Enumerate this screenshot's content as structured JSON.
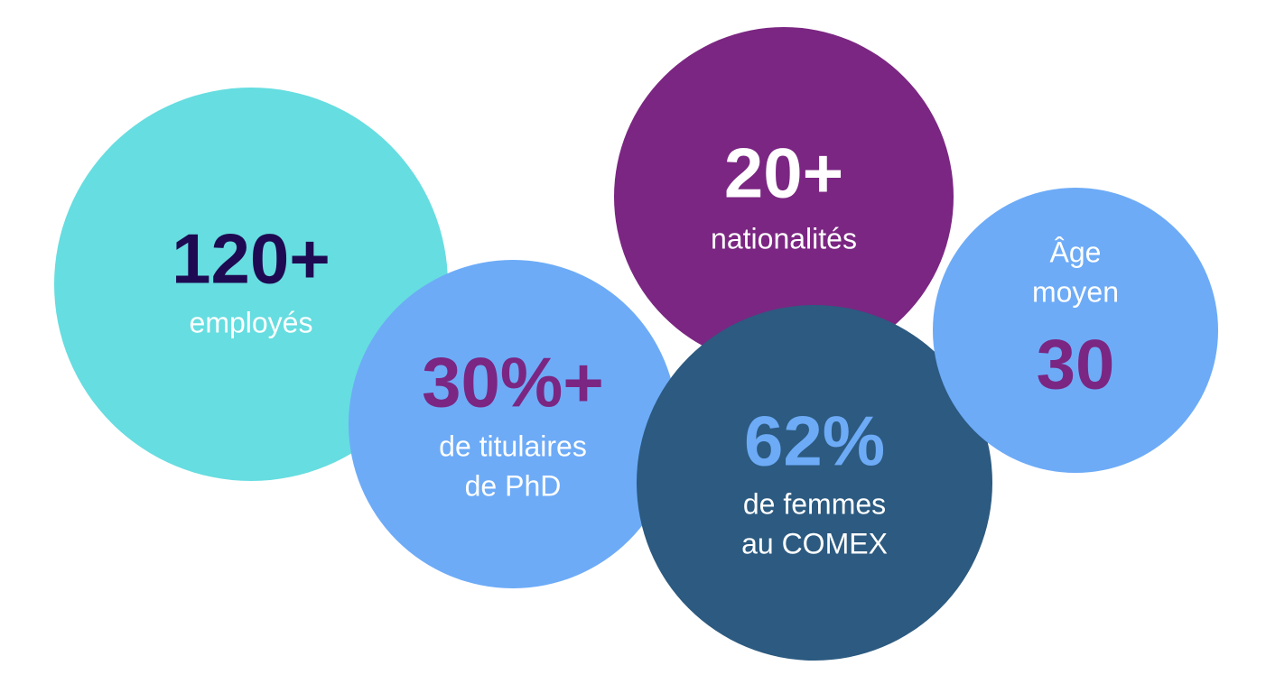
{
  "bubbles": [
    {
      "value": "120+",
      "label": [
        "employés"
      ],
      "color": "#66dde0",
      "value_color": "#1e0a52",
      "label_color": "#ffffff",
      "label_position": "bottom"
    },
    {
      "value": "30%+",
      "label": [
        "de titulaires",
        "de PhD"
      ],
      "color": "#6dabf7",
      "value_color": "#7b2682",
      "label_color": "#ffffff",
      "label_position": "bottom"
    },
    {
      "value": "20+",
      "label": [
        "nationalités"
      ],
      "color": "#7b2682",
      "value_color": "#ffffff",
      "label_color": "#ffffff",
      "label_position": "bottom"
    },
    {
      "value": "62%",
      "label": [
        "de femmes",
        "au COMEX"
      ],
      "color": "#2c5a80",
      "value_color": "#6dabf7",
      "label_color": "#ffffff",
      "label_position": "bottom"
    },
    {
      "value": "30",
      "label": [
        "Âge",
        "moyen"
      ],
      "color": "#6dabf7",
      "value_color": "#7b2682",
      "label_color": "#ffffff",
      "label_position": "top"
    }
  ]
}
